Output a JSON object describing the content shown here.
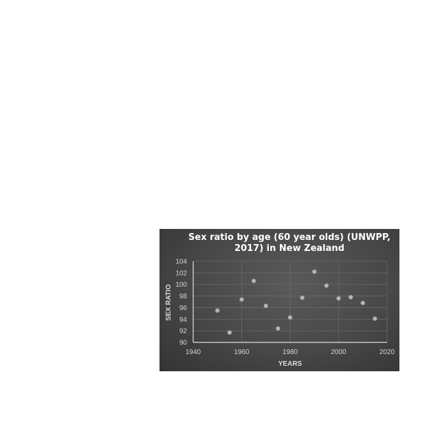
{
  "chart_data": {
    "type": "scatter",
    "title_lines": [
      "Sex ratio by age (60 year olds) (UNWPP,",
      "2017) in New Zealand"
    ],
    "xlabel": "YEARS",
    "ylabel": "SEX RATIO",
    "xlim": [
      1940,
      2020
    ],
    "ylim": [
      90,
      104
    ],
    "xticks": [
      1940,
      1960,
      1980,
      2000,
      2020
    ],
    "yticks": [
      90,
      92,
      94,
      96,
      98,
      100,
      102,
      104
    ],
    "grid": true,
    "series": [
      {
        "name": "Sex ratio",
        "x": [
          1950,
          1955,
          1960,
          1965,
          1970,
          1975,
          1980,
          1985,
          1990,
          1995,
          2000,
          2005,
          2010,
          2015
        ],
        "y": [
          95.5,
          91.7,
          97.4,
          100.6,
          96.3,
          92.4,
          94.3,
          97.7,
          102.2,
          99.8,
          97.6,
          97.8,
          96.8,
          94.1
        ]
      }
    ],
    "colors": {
      "point": "#b7b7b7",
      "gridline": "#6a6a6a",
      "axis": "#e0e0e0"
    }
  }
}
